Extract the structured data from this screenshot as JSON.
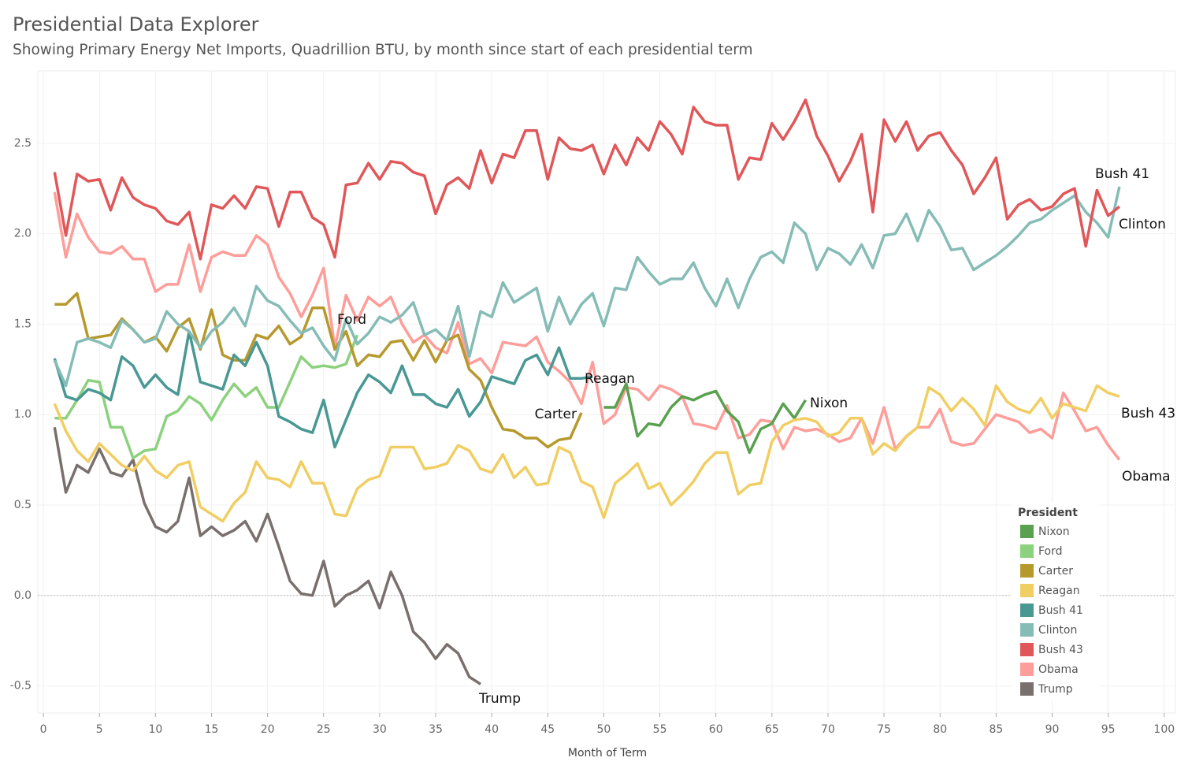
{
  "chart_data": {
    "type": "line",
    "title": "Presidential Data Explorer",
    "subtitle": "Showing Primary Energy Net Imports, Quadrillion BTU, by month since start of each presidential term",
    "x_label": "Month of Term",
    "legend_title": "President",
    "legend": "bottom-right",
    "grid": true,
    "xlim": [
      -0.5,
      101
    ],
    "ylim": [
      -0.65,
      2.9
    ],
    "xticks": [
      0,
      5,
      10,
      15,
      20,
      25,
      30,
      35,
      40,
      45,
      50,
      55,
      60,
      65,
      70,
      75,
      80,
      85,
      90,
      95,
      100
    ],
    "yticks": [
      -0.5,
      {
        "value": 0,
        "label": "0.0"
      },
      0.5,
      {
        "value": 1,
        "label": "1.0"
      },
      1.5,
      {
        "value": 2,
        "label": "2.0"
      },
      2.5
    ],
    "x": [
      1,
      2,
      3,
      4,
      5,
      6,
      7,
      8,
      9,
      10,
      11,
      12,
      13,
      14,
      15,
      16,
      17,
      18,
      19,
      20,
      21,
      22,
      23,
      24,
      25,
      26,
      27,
      28,
      29,
      30,
      31,
      32,
      33,
      34,
      35,
      36,
      37,
      38,
      39,
      40,
      41,
      42,
      43,
      44,
      45,
      46,
      47,
      48,
      49,
      50,
      51,
      52,
      53,
      54,
      55,
      56,
      57,
      58,
      59,
      60,
      61,
      62,
      63,
      64,
      65,
      66,
      67,
      68,
      69,
      70,
      71,
      72,
      73,
      74,
      75,
      76,
      77,
      78,
      79,
      80,
      81,
      82,
      83,
      84,
      85,
      86,
      87,
      88,
      89,
      90,
      91,
      92,
      93,
      94,
      95,
      96
    ],
    "series": [
      {
        "name": "Nixon",
        "color": "#59a14f",
        "values": [
          null,
          null,
          null,
          null,
          null,
          null,
          null,
          null,
          null,
          null,
          null,
          null,
          null,
          null,
          null,
          null,
          null,
          null,
          null,
          null,
          null,
          null,
          null,
          null,
          null,
          null,
          null,
          null,
          null,
          null,
          null,
          null,
          null,
          null,
          null,
          null,
          null,
          null,
          null,
          null,
          null,
          null,
          null,
          null,
          null,
          null,
          null,
          null,
          null,
          1.04,
          1.04,
          1.17,
          0.88,
          0.95,
          0.94,
          1.04,
          1.1,
          1.08,
          1.11,
          1.13,
          1.02,
          0.96,
          0.79,
          0.92,
          0.95,
          1.06,
          0.98,
          1.08,
          null,
          null,
          null,
          null,
          null,
          null,
          null,
          null,
          null,
          null,
          null,
          null,
          null,
          null,
          null,
          null,
          null,
          null,
          null,
          null,
          null,
          null,
          null,
          null,
          null,
          null,
          null,
          null
        ]
      },
      {
        "name": "Ford",
        "color": "#8cd17d",
        "values": [
          0.98,
          0.98,
          1.08,
          1.19,
          1.18,
          0.93,
          0.93,
          0.76,
          0.8,
          0.81,
          0.99,
          1.02,
          1.1,
          1.06,
          0.97,
          1.08,
          1.17,
          1.1,
          1.15,
          1.04,
          1.04,
          1.18,
          1.32,
          1.26,
          1.27,
          1.26,
          1.28,
          1.44,
          null,
          null,
          null,
          null,
          null,
          null,
          null,
          null,
          null,
          null,
          null,
          null,
          null,
          null,
          null,
          null,
          null,
          null,
          null,
          null,
          null,
          null,
          null,
          null,
          null,
          null,
          null,
          null,
          null,
          null,
          null,
          null,
          null,
          null,
          null,
          null,
          null,
          null,
          null,
          null,
          null,
          null,
          null,
          null,
          null,
          null,
          null,
          null,
          null,
          null,
          null,
          null,
          null,
          null,
          null,
          null,
          null,
          null,
          null,
          null,
          null,
          null,
          null,
          null,
          null,
          null,
          null,
          null
        ]
      },
      {
        "name": "Carter",
        "color": "#b6992d",
        "values": [
          1.61,
          1.61,
          1.67,
          1.42,
          1.43,
          1.44,
          1.53,
          1.47,
          1.4,
          1.43,
          1.35,
          1.48,
          1.53,
          1.36,
          1.58,
          1.33,
          1.3,
          1.3,
          1.44,
          1.42,
          1.49,
          1.39,
          1.43,
          1.59,
          1.59,
          1.36,
          1.46,
          1.27,
          1.33,
          1.32,
          1.4,
          1.41,
          1.3,
          1.41,
          1.29,
          1.41,
          1.44,
          1.25,
          1.19,
          1.04,
          0.92,
          0.91,
          0.87,
          0.87,
          0.82,
          0.86,
          0.87,
          1.01,
          null,
          null,
          null,
          null,
          null,
          null,
          null,
          null,
          null,
          null,
          null,
          null,
          null,
          null,
          null,
          null,
          null,
          null,
          null,
          null,
          null,
          null,
          null,
          null,
          null,
          null,
          null,
          null,
          null,
          null,
          null,
          null,
          null,
          null,
          null,
          null,
          null,
          null,
          null,
          null,
          null,
          null,
          null,
          null,
          null,
          null,
          null,
          null
        ]
      },
      {
        "name": "Reagan",
        "color": "#f1ce63",
        "values": [
          1.06,
          0.91,
          0.8,
          0.74,
          0.84,
          0.78,
          0.72,
          0.69,
          0.77,
          0.69,
          0.65,
          0.72,
          0.74,
          0.49,
          0.45,
          0.41,
          0.51,
          0.57,
          0.74,
          0.65,
          0.64,
          0.6,
          0.74,
          0.62,
          0.62,
          0.45,
          0.44,
          0.59,
          0.64,
          0.66,
          0.82,
          0.82,
          0.82,
          0.7,
          0.71,
          0.73,
          0.83,
          0.8,
          0.7,
          0.68,
          0.78,
          0.65,
          0.71,
          0.61,
          0.62,
          0.82,
          0.79,
          0.63,
          0.6,
          0.43,
          0.62,
          0.67,
          0.73,
          0.59,
          0.62,
          0.5,
          0.56,
          0.63,
          0.73,
          0.79,
          0.79,
          0.56,
          0.61,
          0.62,
          0.85,
          0.94,
          0.97,
          0.98,
          0.96,
          0.88,
          0.9,
          0.98,
          0.98,
          0.78,
          0.84,
          0.8,
          0.88,
          0.93,
          1.15,
          1.11,
          1.02,
          1.09,
          1.03,
          0.94,
          1.16,
          1.07,
          1.03,
          1.01,
          1.09,
          0.98,
          1.06,
          1.04,
          1.02,
          1.16,
          1.12,
          1.1
        ]
      },
      {
        "name": "Bush 41",
        "color": "#499894",
        "values": [
          1.31,
          1.1,
          1.08,
          1.14,
          1.12,
          1.08,
          1.32,
          1.27,
          1.15,
          1.22,
          1.15,
          1.11,
          1.46,
          1.18,
          1.16,
          1.14,
          1.33,
          1.27,
          1.4,
          1.27,
          0.99,
          0.96,
          0.92,
          0.9,
          1.08,
          0.82,
          0.97,
          1.12,
          1.22,
          1.18,
          1.12,
          1.27,
          1.11,
          1.11,
          1.06,
          1.04,
          1.14,
          0.99,
          1.07,
          1.21,
          1.19,
          1.17,
          1.3,
          1.33,
          1.22,
          1.37,
          1.2,
          1.2,
          1.21,
          null,
          null,
          null,
          null,
          null,
          null,
          null,
          null,
          null,
          null,
          null,
          null,
          null,
          null,
          null,
          null,
          null,
          null,
          null,
          null,
          null,
          null,
          null,
          null,
          null,
          null,
          null,
          null,
          null,
          null,
          null,
          null,
          null,
          null,
          null,
          null,
          null,
          null,
          null,
          null,
          null,
          null,
          null,
          null,
          null,
          null,
          null
        ]
      },
      {
        "name": "Clinton",
        "color": "#86bcb6",
        "values": [
          1.3,
          1.16,
          1.4,
          1.42,
          1.4,
          1.37,
          1.52,
          1.47,
          1.4,
          1.42,
          1.57,
          1.5,
          1.46,
          1.37,
          1.46,
          1.51,
          1.59,
          1.49,
          1.71,
          1.63,
          1.6,
          1.52,
          1.45,
          1.48,
          1.38,
          1.3,
          1.53,
          1.39,
          1.45,
          1.54,
          1.51,
          1.55,
          1.62,
          1.44,
          1.47,
          1.41,
          1.6,
          1.32,
          1.57,
          1.54,
          1.73,
          1.62,
          1.66,
          1.7,
          1.46,
          1.65,
          1.5,
          1.61,
          1.67,
          1.49,
          1.7,
          1.69,
          1.87,
          1.79,
          1.72,
          1.75,
          1.75,
          1.84,
          1.7,
          1.6,
          1.75,
          1.59,
          1.75,
          1.87,
          1.9,
          1.84,
          2.06,
          2.0,
          1.8,
          1.92,
          1.89,
          1.83,
          1.94,
          1.81,
          1.99,
          2.0,
          2.11,
          1.96,
          2.13,
          2.04,
          1.91,
          1.92,
          1.8,
          1.84,
          1.88,
          1.93,
          1.99,
          2.06,
          2.08,
          2.13,
          2.17,
          2.21,
          2.12,
          2.06,
          1.98,
          2.26
        ]
      },
      {
        "name": "Bush 43",
        "color": "#e15759",
        "values": [
          2.34,
          1.99,
          2.33,
          2.29,
          2.3,
          2.13,
          2.31,
          2.2,
          2.16,
          2.14,
          2.07,
          2.05,
          2.12,
          1.86,
          2.16,
          2.14,
          2.21,
          2.14,
          2.26,
          2.25,
          2.04,
          2.23,
          2.23,
          2.09,
          2.05,
          1.87,
          2.27,
          2.28,
          2.39,
          2.3,
          2.4,
          2.39,
          2.34,
          2.32,
          2.11,
          2.27,
          2.31,
          2.25,
          2.46,
          2.28,
          2.44,
          2.42,
          2.57,
          2.57,
          2.3,
          2.53,
          2.47,
          2.46,
          2.49,
          2.33,
          2.49,
          2.38,
          2.53,
          2.46,
          2.62,
          2.55,
          2.44,
          2.7,
          2.62,
          2.6,
          2.6,
          2.3,
          2.42,
          2.41,
          2.61,
          2.52,
          2.62,
          2.74,
          2.54,
          2.43,
          2.29,
          2.4,
          2.55,
          2.12,
          2.63,
          2.51,
          2.62,
          2.46,
          2.54,
          2.56,
          2.46,
          2.38,
          2.22,
          2.31,
          2.42,
          2.08,
          2.16,
          2.19,
          2.13,
          2.15,
          2.22,
          2.25,
          1.93,
          2.24,
          2.1,
          2.15
        ]
      },
      {
        "name": "Obama",
        "color": "#ff9d9a",
        "values": [
          2.23,
          1.87,
          2.11,
          1.98,
          1.9,
          1.89,
          1.93,
          1.86,
          1.86,
          1.68,
          1.72,
          1.72,
          1.94,
          1.68,
          1.87,
          1.9,
          1.88,
          1.88,
          1.99,
          1.94,
          1.76,
          1.67,
          1.54,
          1.66,
          1.81,
          1.37,
          1.66,
          1.52,
          1.65,
          1.6,
          1.65,
          1.5,
          1.4,
          1.44,
          1.37,
          1.34,
          1.51,
          1.28,
          1.31,
          1.23,
          1.4,
          1.39,
          1.38,
          1.43,
          1.29,
          1.24,
          1.18,
          1.06,
          1.29,
          0.95,
          1.0,
          1.15,
          1.14,
          1.08,
          1.16,
          1.14,
          1.1,
          0.95,
          0.94,
          0.92,
          1.05,
          0.87,
          0.89,
          0.97,
          0.96,
          0.81,
          0.93,
          0.91,
          0.92,
          0.89,
          0.85,
          0.87,
          0.98,
          0.84,
          1.04,
          0.81,
          0.88,
          0.93,
          0.93,
          1.03,
          0.85,
          0.83,
          0.84,
          0.92,
          1.0,
          0.98,
          0.96,
          0.9,
          0.92,
          0.87,
          1.12,
          1.02,
          0.91,
          0.93,
          0.83,
          0.75
        ]
      },
      {
        "name": "Trump",
        "color": "#79706e",
        "values": [
          0.93,
          0.57,
          0.72,
          0.68,
          0.81,
          0.68,
          0.66,
          0.75,
          0.51,
          0.38,
          0.35,
          0.41,
          0.65,
          0.33,
          0.38,
          0.33,
          0.36,
          0.41,
          0.3,
          0.45,
          0.27,
          0.08,
          0.01,
          0.0,
          0.19,
          -0.06,
          0.0,
          0.03,
          0.08,
          -0.07,
          0.13,
          0.0,
          -0.2,
          -0.26,
          -0.35,
          -0.27,
          -0.32,
          -0.45,
          -0.49,
          null,
          null,
          null,
          null,
          null,
          null,
          null,
          null,
          null,
          null,
          null,
          null,
          null,
          null,
          null,
          null,
          null,
          null,
          null,
          null,
          null,
          null,
          null,
          null,
          null,
          null,
          null,
          null,
          null,
          null,
          null,
          null,
          null,
          null,
          null,
          null,
          null,
          null,
          null,
          null,
          null,
          null,
          null,
          null,
          null,
          null,
          null,
          null,
          null,
          null,
          null,
          null,
          null,
          null,
          null,
          null,
          null
        ]
      }
    ]
  }
}
